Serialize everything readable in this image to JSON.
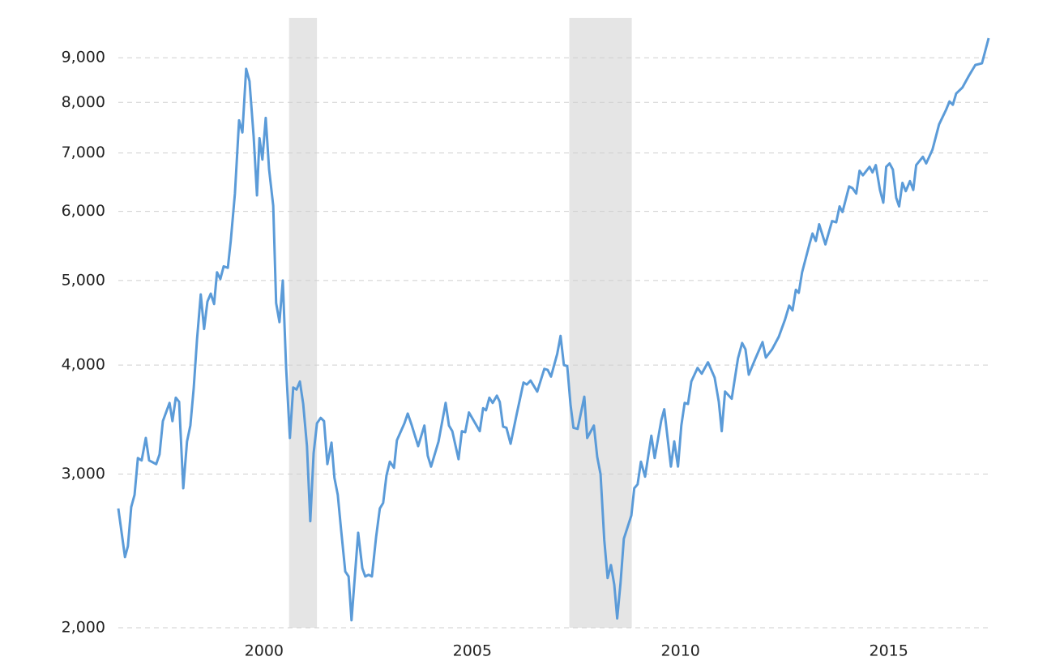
{
  "chart_data": {
    "type": "line",
    "log_scale": true,
    "grid": true,
    "color": "#5b9bd8",
    "shade_color": "#e5e5e5",
    "xlim": [
      1996.5,
      2017.4
    ],
    "ylim": [
      2000,
      10000
    ],
    "xticks": [
      2000,
      2005,
      2010,
      2015
    ],
    "yticks": [
      {
        "value": 2000,
        "label": "2,000"
      },
      {
        "value": 3000,
        "label": "3,000"
      },
      {
        "value": 4000,
        "label": "4,000"
      },
      {
        "value": 5000,
        "label": "5,000"
      },
      {
        "value": 6000,
        "label": "6,000"
      },
      {
        "value": 7000,
        "label": "7,000"
      },
      {
        "value": 8000,
        "label": "8,000"
      },
      {
        "value": 9000,
        "label": "9,000"
      }
    ],
    "shaded_ranges": [
      [
        2000.6,
        2001.27
      ],
      [
        2007.33,
        2008.83
      ]
    ],
    "x": [
      1996.5,
      1996.66,
      1996.73,
      1996.81,
      1996.89,
      1996.97,
      1997.06,
      1997.16,
      1997.24,
      1997.41,
      1997.49,
      1997.57,
      1997.73,
      1997.8,
      1997.88,
      1997.96,
      1998.06,
      1998.15,
      1998.23,
      1998.31,
      1998.39,
      1998.48,
      1998.56,
      1998.64,
      1998.72,
      1998.8,
      1998.87,
      1998.95,
      1999.03,
      1999.13,
      1999.2,
      1999.3,
      1999.4,
      1999.48,
      1999.57,
      1999.65,
      1999.75,
      1999.83,
      1999.89,
      1999.96,
      2000.04,
      2000.12,
      2000.22,
      2000.29,
      2000.37,
      2000.45,
      2000.53,
      2000.62,
      2000.7,
      2000.78,
      2000.86,
      2000.94,
      2001.03,
      2001.11,
      2001.19,
      2001.27,
      2001.36,
      2001.44,
      2001.52,
      2001.62,
      2001.69,
      2001.77,
      2001.85,
      2001.95,
      2002.03,
      2002.1,
      2002.18,
      2002.26,
      2002.36,
      2002.43,
      2002.51,
      2002.59,
      2002.69,
      2002.78,
      2002.86,
      2002.94,
      2003.02,
      2003.12,
      2003.19,
      2003.37,
      2003.45,
      2003.54,
      2003.7,
      2003.85,
      2003.93,
      2004.01,
      2004.19,
      2004.36,
      2004.44,
      2004.52,
      2004.67,
      2004.75,
      2004.83,
      2004.92,
      2005.18,
      2005.26,
      2005.33,
      2005.41,
      2005.49,
      2005.59,
      2005.66,
      2005.74,
      2005.82,
      2005.92,
      2006.07,
      2006.23,
      2006.31,
      2006.4,
      2006.56,
      2006.73,
      2006.81,
      2006.89,
      2007.04,
      2007.12,
      2007.2,
      2007.28,
      2007.36,
      2007.43,
      2007.53,
      2007.69,
      2007.76,
      2007.92,
      2008.0,
      2008.08,
      2008.17,
      2008.25,
      2008.33,
      2008.41,
      2008.48,
      2008.56,
      2008.64,
      2008.82,
      2008.89,
      2008.97,
      2009.05,
      2009.15,
      2009.3,
      2009.38,
      2009.54,
      2009.61,
      2009.77,
      2009.85,
      2009.94,
      2010.02,
      2010.1,
      2010.18,
      2010.26,
      2010.41,
      2010.51,
      2010.66,
      2010.82,
      2010.92,
      2010.99,
      2011.07,
      2011.23,
      2011.38,
      2011.48,
      2011.56,
      2011.64,
      2011.79,
      2011.97,
      2012.05,
      2012.2,
      2012.36,
      2012.51,
      2012.61,
      2012.69,
      2012.77,
      2012.84,
      2012.92,
      2013.1,
      2013.17,
      2013.25,
      2013.33,
      2013.48,
      2013.64,
      2013.74,
      2013.82,
      2013.89,
      2014.05,
      2014.13,
      2014.22,
      2014.3,
      2014.38,
      2014.54,
      2014.61,
      2014.69,
      2014.79,
      2014.87,
      2014.94,
      2015.02,
      2015.1,
      2015.18,
      2015.25,
      2015.33,
      2015.41,
      2015.51,
      2015.59,
      2015.66,
      2015.82,
      2015.9,
      2016.05,
      2016.21,
      2016.38,
      2016.46,
      2016.54,
      2016.62,
      2016.77,
      2016.93,
      2017.08,
      2017.24,
      2017.4
    ],
    "values": [
      2740,
      2410,
      2480,
      2750,
      2840,
      3130,
      3110,
      3300,
      3110,
      3080,
      3160,
      3450,
      3620,
      3450,
      3670,
      3630,
      2890,
      3270,
      3410,
      3760,
      4280,
      4820,
      4400,
      4730,
      4830,
      4700,
      5110,
      5020,
      5190,
      5170,
      5550,
      6290,
      7630,
      7390,
      8740,
      8460,
      7310,
      6260,
      7280,
      6880,
      7680,
      6710,
      6090,
      4710,
      4480,
      5000,
      3970,
      3300,
      3770,
      3750,
      3830,
      3610,
      3230,
      2650,
      3170,
      3430,
      3480,
      3450,
      3080,
      3260,
      2970,
      2840,
      2590,
      2320,
      2290,
      2040,
      2290,
      2570,
      2340,
      2290,
      2300,
      2290,
      2540,
      2740,
      2780,
      2990,
      3100,
      3050,
      3280,
      3430,
      3520,
      3420,
      3230,
      3410,
      3150,
      3060,
      3270,
      3620,
      3410,
      3360,
      3120,
      3360,
      3350,
      3530,
      3360,
      3570,
      3550,
      3670,
      3620,
      3690,
      3630,
      3400,
      3390,
      3250,
      3520,
      3820,
      3800,
      3840,
      3730,
      3960,
      3950,
      3880,
      4120,
      4320,
      4000,
      3990,
      3600,
      3390,
      3380,
      3680,
      3300,
      3410,
      3140,
      3000,
      2520,
      2280,
      2360,
      2240,
      2050,
      2250,
      2530,
      2690,
      2890,
      2920,
      3100,
      2980,
      3320,
      3130,
      3460,
      3560,
      3060,
      3270,
      3060,
      3410,
      3620,
      3610,
      3830,
      3970,
      3910,
      4030,
      3870,
      3630,
      3360,
      3730,
      3660,
      4070,
      4240,
      4170,
      3900,
      4060,
      4250,
      4080,
      4170,
      4310,
      4510,
      4680,
      4620,
      4880,
      4840,
      5110,
      5510,
      5660,
      5550,
      5800,
      5500,
      5850,
      5830,
      6080,
      5990,
      6410,
      6380,
      6290,
      6680,
      6600,
      6750,
      6650,
      6780,
      6350,
      6140,
      6750,
      6810,
      6700,
      6220,
      6080,
      6470,
      6330,
      6500,
      6350,
      6780,
      6930,
      6810,
      7060,
      7550,
      7850,
      8020,
      7950,
      8190,
      8320,
      8590,
      8830,
      8870,
      9480
    ]
  }
}
